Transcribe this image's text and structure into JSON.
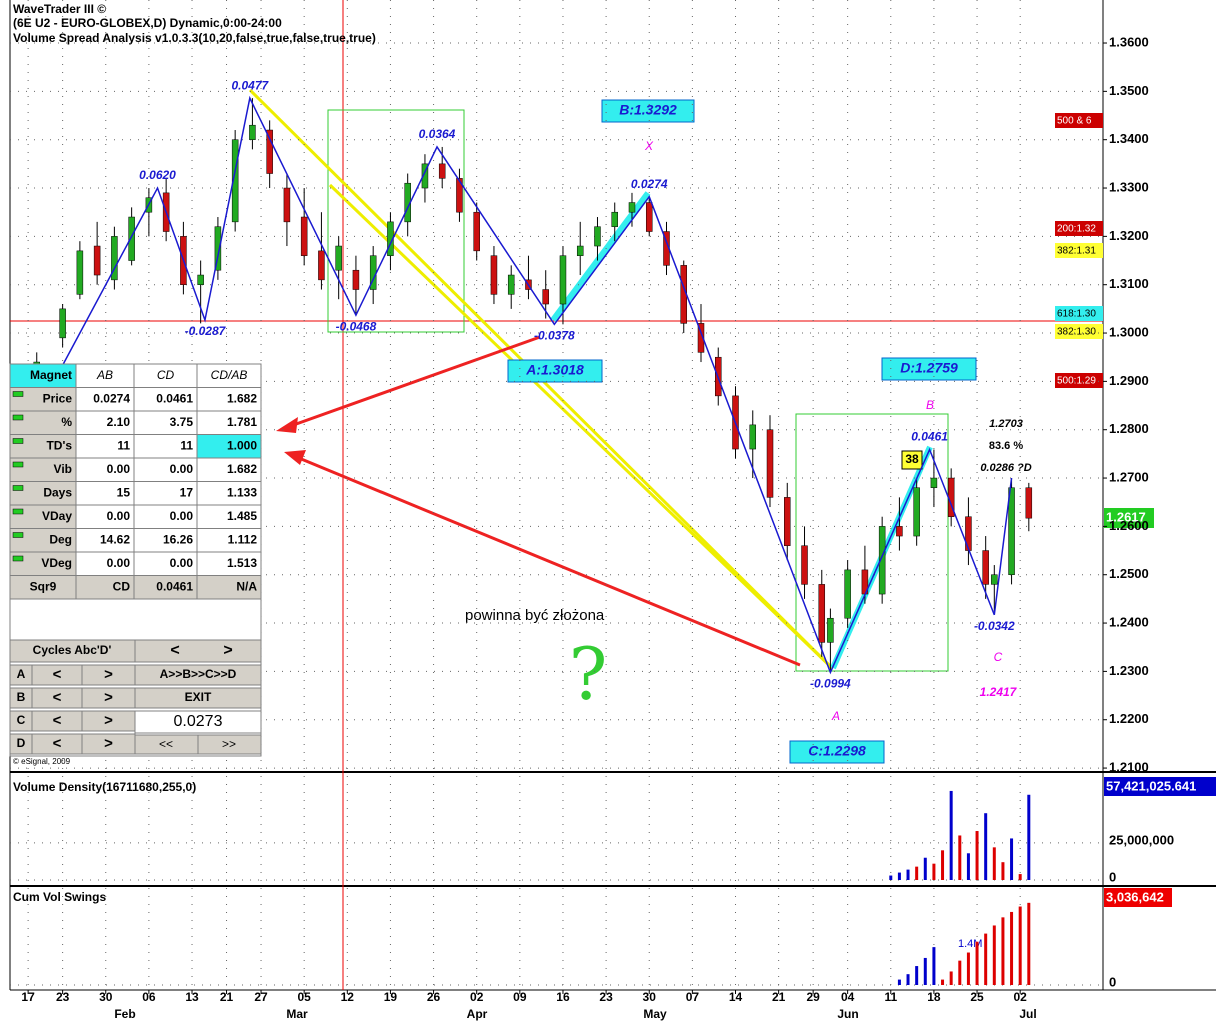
{
  "header": {
    "title": "WaveTrader III ©",
    "symbol": "(6E U2 - EURO-GLOBEX,D) Dynamic,0:00-24:00",
    "study": "Volume Spread Analysis v1.0.3.3(10,20,false,true,false,true,true)"
  },
  "chart_data": [
    {
      "type": "candlestick",
      "x": [
        1,
        4,
        6,
        8,
        10,
        12,
        14,
        16,
        18,
        20,
        22,
        24,
        26,
        28,
        30,
        32,
        34,
        36,
        38,
        40,
        42,
        44,
        46,
        48,
        50,
        52,
        54,
        56,
        58,
        60,
        62,
        64,
        66,
        68,
        70,
        72,
        74,
        76,
        78,
        80,
        82,
        84,
        86,
        88,
        90,
        92,
        93,
        95,
        97,
        99,
        101,
        103,
        105,
        107,
        109,
        111,
        112,
        114,
        116
      ],
      "open": [
        1.288,
        1.299,
        1.308,
        1.318,
        1.311,
        1.315,
        1.325,
        1.329,
        1.32,
        1.31,
        1.313,
        1.323,
        1.34,
        1.342,
        1.33,
        1.324,
        1.317,
        1.313,
        1.313,
        1.309,
        1.316,
        1.323,
        1.33,
        1.335,
        1.332,
        1.325,
        1.316,
        1.308,
        1.311,
        1.309,
        1.306,
        1.316,
        1.318,
        1.322,
        1.325,
        1.327,
        1.321,
        1.314,
        1.302,
        1.295,
        1.287,
        1.276,
        1.28,
        1.266,
        1.256,
        1.248,
        1.236,
        1.241,
        1.251,
        1.246,
        1.26,
        1.258,
        1.268,
        1.27,
        1.262,
        1.255,
        1.248,
        1.25,
        1.268
      ],
      "high": [
        1.296,
        1.306,
        1.319,
        1.323,
        1.322,
        1.326,
        1.33,
        1.332,
        1.323,
        1.315,
        1.324,
        1.342,
        1.3486,
        1.344,
        1.333,
        1.33,
        1.325,
        1.32,
        1.316,
        1.318,
        1.325,
        1.333,
        1.337,
        1.3385,
        1.334,
        1.327,
        1.318,
        1.314,
        1.316,
        1.313,
        1.318,
        1.323,
        1.324,
        1.327,
        1.329,
        1.3282,
        1.323,
        1.315,
        1.306,
        1.297,
        1.289,
        1.284,
        1.283,
        1.269,
        1.26,
        1.251,
        1.243,
        1.253,
        1.256,
        1.262,
        1.266,
        1.27,
        1.2759,
        1.272,
        1.266,
        1.258,
        1.252,
        1.27,
        1.269
      ],
      "low": [
        1.286,
        1.297,
        1.307,
        1.31,
        1.309,
        1.314,
        1.32,
        1.319,
        1.308,
        1.302,
        1.311,
        1.321,
        1.338,
        1.33,
        1.318,
        1.314,
        1.309,
        1.307,
        1.3037,
        1.306,
        1.313,
        1.32,
        1.327,
        1.33,
        1.323,
        1.315,
        1.306,
        1.305,
        1.307,
        1.303,
        1.3018,
        1.312,
        1.315,
        1.319,
        1.322,
        1.32,
        1.312,
        1.3,
        1.294,
        1.285,
        1.274,
        1.27,
        1.264,
        1.253,
        1.245,
        1.233,
        1.2298,
        1.239,
        1.244,
        1.244,
        1.255,
        1.256,
        1.264,
        1.26,
        1.252,
        1.245,
        1.2417,
        1.248,
        1.259
      ],
      "close": [
        1.294,
        1.305,
        1.317,
        1.312,
        1.32,
        1.324,
        1.328,
        1.321,
        1.31,
        1.312,
        1.322,
        1.34,
        1.343,
        1.333,
        1.323,
        1.316,
        1.311,
        1.318,
        1.309,
        1.316,
        1.323,
        1.331,
        1.335,
        1.332,
        1.325,
        1.317,
        1.308,
        1.312,
        1.309,
        1.306,
        1.316,
        1.318,
        1.322,
        1.325,
        1.327,
        1.321,
        1.314,
        1.302,
        1.296,
        1.287,
        1.276,
        1.281,
        1.266,
        1.256,
        1.248,
        1.236,
        1.241,
        1.251,
        1.246,
        1.26,
        1.258,
        1.268,
        1.27,
        1.262,
        1.255,
        1.248,
        1.25,
        1.268,
        1.2617
      ],
      "zigzag": {
        "x": [
          3,
          15,
          20.5,
          25.7,
          38,
          47.4,
          61,
          72,
          93,
          104.5,
          112,
          114
        ],
        "values": [
          1.29,
          1.33,
          1.3027,
          1.3486,
          1.3037,
          1.3385,
          1.3018,
          1.3282,
          1.2298,
          1.2759,
          1.2417,
          1.27
        ],
        "labels": [
          null,
          "0.0620",
          "-0.0287",
          "0.0477",
          "-0.0468",
          "0.0364",
          "-0.0378",
          "0.0274",
          "-0.0994",
          "0.0461",
          "-0.0342",
          null
        ]
      },
      "xlim": [
        -2.1,
        124.6
      ],
      "ylim": [
        1.2096,
        1.3689
      ],
      "yticks": [
        {
          "value": 1.36,
          "label": "1.3600"
        },
        {
          "value": 1.35,
          "label": "1.3500"
        },
        {
          "value": 1.34,
          "label": "1.3400"
        },
        {
          "value": 1.33,
          "label": "1.3300"
        },
        {
          "value": 1.32,
          "label": "1.3200"
        },
        {
          "value": 1.31,
          "label": "1.3100"
        },
        {
          "value": 1.3,
          "label": "1.3000"
        },
        {
          "value": 1.29,
          "label": "1.2900"
        },
        {
          "value": 1.28,
          "label": "1.2800"
        },
        {
          "value": 1.27,
          "label": "1.2700"
        },
        {
          "value": 1.26,
          "label": "1.2600"
        },
        {
          "value": 1.25,
          "label": "1.2500"
        },
        {
          "value": 1.24,
          "label": "1.2400"
        },
        {
          "value": 1.23,
          "label": "1.2300"
        },
        {
          "value": 1.22,
          "label": "1.2200"
        },
        {
          "value": 1.21,
          "label": "1.2100"
        }
      ],
      "xticks": [
        {
          "value": 0,
          "label": "17"
        },
        {
          "value": 4,
          "label": "23"
        },
        {
          "value": 9,
          "label": "30"
        },
        {
          "value": 14,
          "label": "06"
        },
        {
          "value": 19,
          "label": "13"
        },
        {
          "value": 23,
          "label": "21"
        },
        {
          "value": 27,
          "label": "27"
        },
        {
          "value": 32,
          "label": "05"
        },
        {
          "value": 37,
          "label": "12"
        },
        {
          "value": 42,
          "label": "19"
        },
        {
          "value": 47,
          "label": "26"
        },
        {
          "value": 52,
          "label": "02"
        },
        {
          "value": 57,
          "label": "09"
        },
        {
          "value": 62,
          "label": "16"
        },
        {
          "value": 67,
          "label": "23"
        },
        {
          "value": 72,
          "label": "30"
        },
        {
          "value": 77,
          "label": "07"
        },
        {
          "value": 82,
          "label": "14"
        },
        {
          "value": 87,
          "label": "21"
        },
        {
          "value": 91,
          "label": "29"
        },
        {
          "value": 95,
          "label": "04"
        },
        {
          "value": 100,
          "label": "11"
        },
        {
          "value": 105,
          "label": "18"
        },
        {
          "value": 110,
          "label": "25"
        },
        {
          "value": 115,
          "label": "02"
        }
      ],
      "months": [
        "Feb",
        "Mar",
        "Apr",
        "May",
        "Jun",
        "Jul"
      ],
      "last_price": "1.2617",
      "grid": true
    },
    {
      "type": "bar",
      "title": "Volume Density(16711680,255,0)",
      "x": [
        100,
        101,
        102,
        103,
        104,
        105,
        106,
        107,
        108,
        109,
        110,
        111,
        112,
        113,
        114,
        115,
        116
      ],
      "values": [
        3000000,
        5000000,
        7000000,
        9000000,
        15000000,
        11000000,
        20000000,
        60000000,
        30000000,
        18000000,
        33000000,
        45000000,
        22000000,
        12000000,
        28000000,
        4000000,
        57421025.641
      ],
      "colors": [
        "#0000cc",
        "#0000cc",
        "#0000cc",
        "#dd0000",
        "#0000cc",
        "#dd0000",
        "#dd0000",
        "#0000cc",
        "#dd0000",
        "#0000cc",
        "#dd0000",
        "#0000cc",
        "#dd0000",
        "#dd0000",
        "#0000cc",
        "#dd0000",
        "#0000cc"
      ],
      "last_label": "57,421,025.641",
      "ylim": [
        0,
        64000000
      ],
      "yticks": [
        0,
        {
          "value": 25000000,
          "label": "25,000,000"
        }
      ]
    },
    {
      "type": "bar",
      "title": "Cum Vol Swings",
      "x": [
        101,
        102,
        103,
        104,
        105,
        106,
        107,
        108,
        109,
        110,
        111,
        112,
        113,
        114,
        115,
        116
      ],
      "values": [
        200000,
        400000,
        700000,
        1000000,
        1400000,
        200000,
        500000,
        900000,
        1200000,
        1600000,
        1900000,
        2200000,
        2500000,
        2700000,
        2900000,
        3036642
      ],
      "colors": [
        "#0000cc",
        "#0000cc",
        "#0000cc",
        "#0000cc",
        "#0000cc",
        "#dd0000",
        "#dd0000",
        "#dd0000",
        "#dd0000",
        "#dd0000",
        "#dd0000",
        "#dd0000",
        "#dd0000",
        "#dd0000",
        "#dd0000",
        "#dd0000"
      ],
      "swing_label": "1.4M",
      "last_label": "3,036,642",
      "ylim": [
        0,
        3400000
      ],
      "yticks": [
        0
      ]
    }
  ],
  "pattern": {
    "B": "B:1.3292",
    "A": "A:1.3018",
    "D": "D:1.2759",
    "C": "C:1.2298",
    "x_pt": "X",
    "b_pt": "B",
    "a_pt": "A",
    "c_pt": "C",
    "c_price": "1.2417",
    "proj_price": "1.2703",
    "proj_pct": "83.6 %",
    "proj_swing": "0.0286 ?D",
    "bars": "38"
  },
  "levels": [
    "500 & 6",
    "200:1.32",
    "382:1.31",
    "618:1.30",
    "382:1.30",
    "500:1.29"
  ],
  "notes": {
    "text": "powinna być złożona",
    "question": "?"
  },
  "magnet": {
    "header": [
      "Magnet",
      "AB",
      "CD",
      "CD/AB"
    ],
    "rows": [
      [
        "Price",
        "0.0274",
        "0.0461",
        "1.682"
      ],
      [
        "%",
        "2.10",
        "3.75",
        "1.781"
      ],
      [
        "TD's",
        "11",
        "11",
        "1.000"
      ],
      [
        "Vib",
        "0.00",
        "0.00",
        "1.682"
      ],
      [
        "Days",
        "15",
        "17",
        "1.133"
      ],
      [
        "VDay",
        "0.00",
        "0.00",
        "1.485"
      ],
      [
        "Deg",
        "14.62",
        "16.26",
        "1.112"
      ],
      [
        "VDeg",
        "0.00",
        "0.00",
        "1.513"
      ],
      [
        "Sqr9",
        "CD",
        "0.0461",
        "N/A"
      ]
    ]
  },
  "controls": {
    "cycles": "Cycles Abc'D'",
    "a": "A",
    "b": "B",
    "c": "C",
    "d": "D",
    "prev": "<",
    "next": ">",
    "sequence": "A>>B>>C>>D",
    "exit": "EXIT",
    "value": "0.0273",
    "rew": "<<",
    "fwd": ">>",
    "copyright": "© eSignal, 2009"
  }
}
